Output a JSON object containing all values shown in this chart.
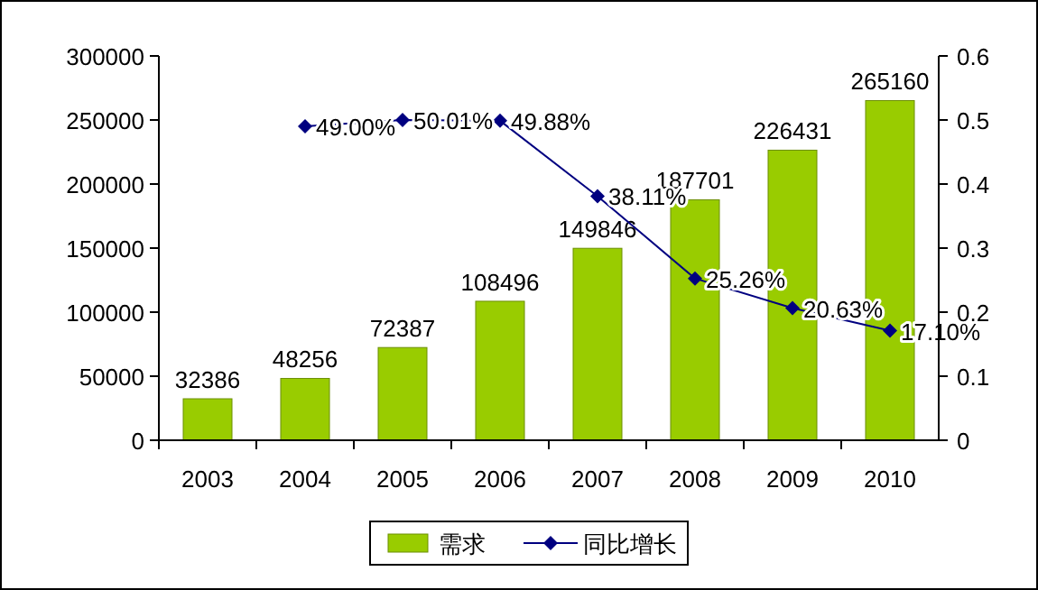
{
  "chart_data": {
    "type": "bar",
    "categories": [
      "2003",
      "2004",
      "2005",
      "2006",
      "2007",
      "2008",
      "2009",
      "2010"
    ],
    "series": [
      {
        "name": "需求",
        "color": "#99cc00",
        "values": [
          32386,
          48256,
          72387,
          108496,
          149846,
          187701,
          226431,
          265160
        ],
        "value_labels": [
          "32386",
          "48256",
          "72387",
          "108496",
          "149846",
          "187701",
          "226431",
          "265160"
        ]
      },
      {
        "name": "同比增长",
        "type": "line",
        "axis": "y2",
        "color": "#000080",
        "values": [
          null,
          0.49,
          0.5001,
          0.4988,
          0.3811,
          0.2526,
          0.2063,
          0.171
        ],
        "value_labels": [
          null,
          "49.00%",
          "50.01%",
          "49.88%",
          "38.11%",
          "25.26%",
          "20.63%",
          "17.10%"
        ]
      }
    ],
    "ylim": [
      0,
      300000
    ],
    "yticks": [
      0,
      50000,
      100000,
      150000,
      200000,
      250000,
      300000
    ],
    "y2lim": [
      0,
      0.6
    ],
    "y2ticks": [
      0,
      0.1,
      0.2,
      0.3,
      0.4,
      0.5,
      0.6
    ],
    "grid": false,
    "legend": "bottom",
    "marker": "diamond",
    "line_style": "solid"
  }
}
